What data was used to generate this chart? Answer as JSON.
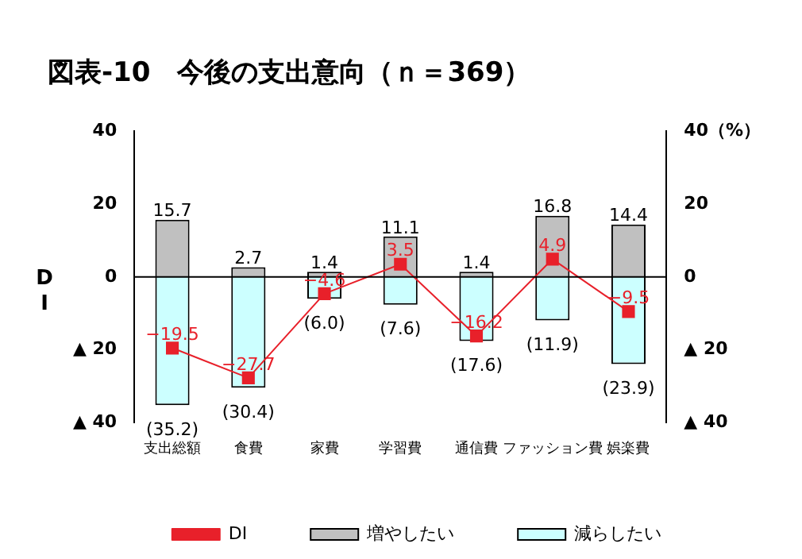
{
  "chart_data": {
    "type": "bar",
    "title": "図表-10　今後の支出意向（ｎ＝369）",
    "ylabel": "DI",
    "categories": [
      "支出総額",
      "食費",
      "家費",
      "学習費",
      "通信費",
      "ファッション費",
      "娯楽費"
    ],
    "stacked": true,
    "series": [
      {
        "name": "増やしたい",
        "color": "#c0c0c0",
        "values": [
          15.7,
          2.7,
          1.4,
          11.1,
          1.4,
          16.8,
          14.4
        ],
        "value_labels": [
          "15.7",
          "2.7",
          "1.4",
          "11.1",
          "1.4",
          "16.8",
          "14.4"
        ]
      },
      {
        "name": "減らしたい",
        "color": "#ccffff",
        "values": [
          -35.2,
          -30.4,
          -6.0,
          -7.6,
          -17.6,
          -11.9,
          -23.9
        ],
        "value_labels": [
          "(35.2)",
          "(30.4)",
          "(6.0)",
          "(7.6)",
          "(17.6)",
          "(11.9)",
          "(23.9)"
        ]
      },
      {
        "name": "DI",
        "type": "line",
        "color": "#e8202a",
        "marker": "square",
        "values": [
          -19.5,
          -27.7,
          -4.6,
          3.5,
          -16.2,
          4.9,
          -9.5
        ],
        "value_labels": [
          "−19.5",
          "−27.7",
          "−4.6",
          "3.5",
          "−16.2",
          "4.9",
          "−9.5"
        ]
      }
    ],
    "ylim": [
      -40,
      40
    ],
    "yticks": [
      {
        "value": -40,
        "label": "▲ 40"
      },
      {
        "value": -20,
        "label": "▲ 20"
      },
      0,
      20,
      40
    ],
    "y2lim": [
      -40,
      40
    ],
    "y2ticks": [
      {
        "value": -40,
        "label": "▲ 40"
      },
      {
        "value": -20,
        "label": "▲ 20"
      },
      0,
      20,
      {
        "value": 40,
        "label": "40（%）"
      }
    ],
    "ref_lines": [
      {
        "axis": "y",
        "value": 0,
        "color": "#000000"
      }
    ],
    "legend": "bottom",
    "grid": false
  }
}
